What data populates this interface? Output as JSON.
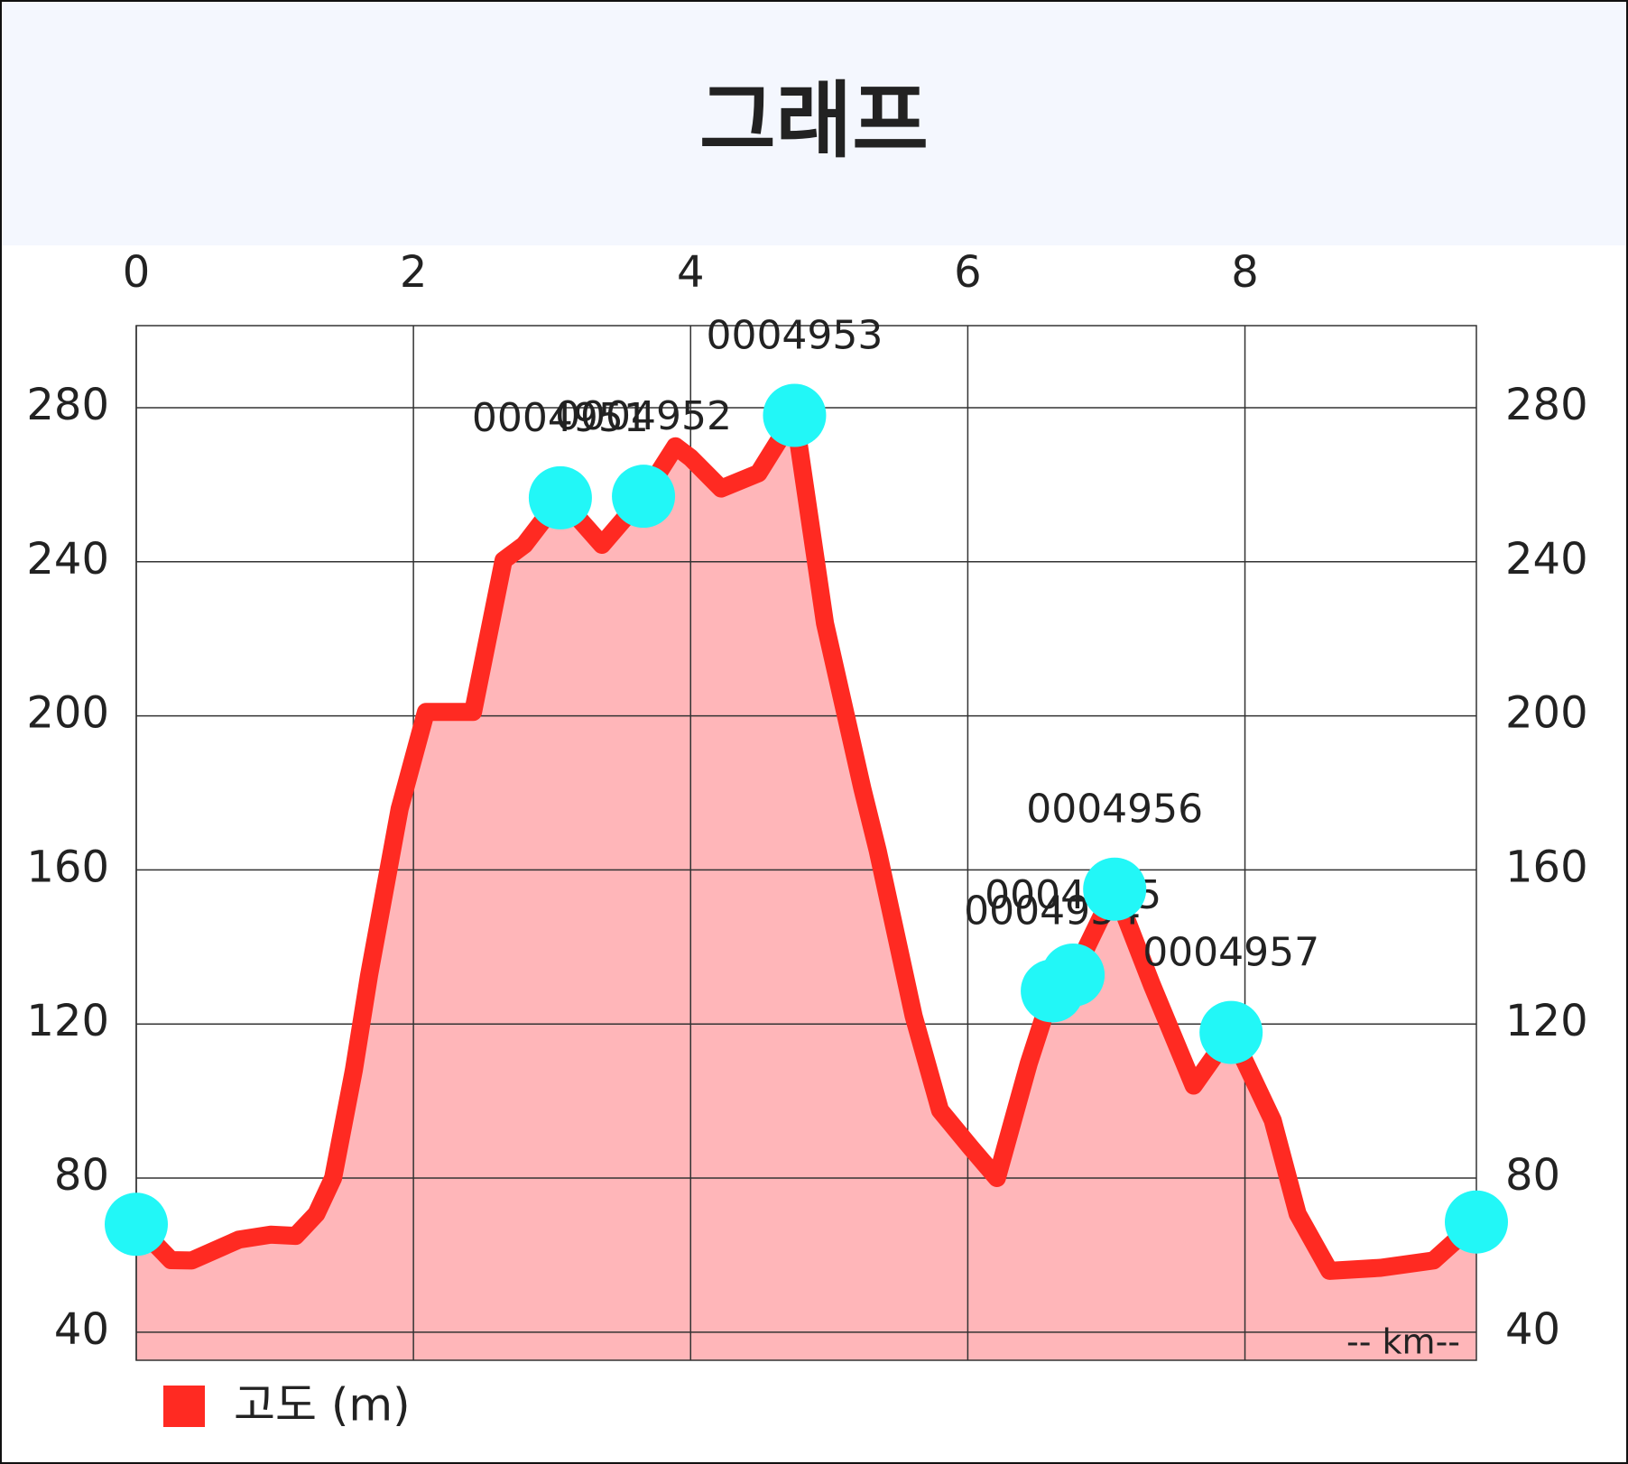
{
  "chart_data": {
    "type": "area",
    "title": "그래프",
    "series": [
      {
        "name": "고도 (m)",
        "color": "#ff2a22",
        "fill": "#ffb6b9",
        "x": [
          0,
          0.25,
          0.4,
          0.74,
          0.97,
          1.15,
          1.3,
          1.42,
          1.57,
          1.68,
          1.9,
          2.09,
          2.43,
          2.65,
          2.8,
          3.06,
          3.36,
          3.66,
          3.89,
          4.0,
          4.22,
          4.49,
          4.75,
          4.97,
          5.24,
          5.35,
          5.61,
          5.8,
          6.02,
          6.21,
          6.44,
          6.61,
          6.76,
          7.06,
          7.33,
          7.63,
          7.9,
          8.2,
          8.38,
          8.61,
          8.98,
          9.36,
          9.67
        ],
        "values": [
          68,
          58.7,
          58.6,
          64,
          65.3,
          65,
          70.7,
          80,
          108,
          132.7,
          175.8,
          201,
          201,
          240.4,
          244.4,
          256.6,
          244.4,
          257,
          270,
          267,
          259,
          263,
          278,
          224,
          181,
          165,
          122,
          97.6,
          88,
          80,
          109.8,
          128.6,
          132.7,
          155,
          130,
          104,
          117.8,
          95,
          70.7,
          55.9,
          56.7,
          58.6,
          68.6
        ]
      }
    ],
    "waypoints": {
      "color": "#22f7f7",
      "points": [
        {
          "x": 0,
          "y": 68,
          "label": null
        },
        {
          "x": 3.06,
          "y": 256.6,
          "label": "0004951"
        },
        {
          "x": 3.66,
          "y": 257,
          "label": "0004952"
        },
        {
          "x": 4.75,
          "y": 278,
          "label": "0004953"
        },
        {
          "x": 6.61,
          "y": 128.6,
          "label": "0004954"
        },
        {
          "x": 6.76,
          "y": 132.7,
          "label": "0004955"
        },
        {
          "x": 7.06,
          "y": 155,
          "label": "0004956"
        },
        {
          "x": 7.9,
          "y": 117.8,
          "label": "0004957"
        },
        {
          "x": 9.67,
          "y": 68.6,
          "label": null
        }
      ]
    },
    "xlim": [
      0,
      9.67
    ],
    "xticks": [
      0,
      2,
      4,
      6,
      8
    ],
    "ylim": [
      32.7,
      301.3
    ],
    "yticks": [
      40,
      80,
      120,
      160,
      200,
      240,
      280
    ],
    "grid": true,
    "x_annotation": "-- km--"
  }
}
